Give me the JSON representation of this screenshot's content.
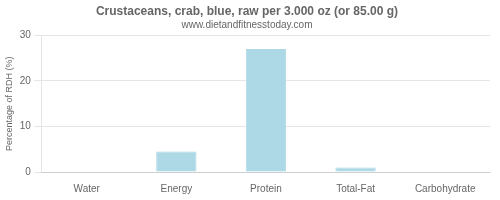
{
  "chart_data": {
    "type": "bar",
    "title": "Crustaceans, crab, blue, raw per 3.000 oz (or 85.00 g)",
    "subtitle": "www.dietandfitnesstoday.com",
    "categories": [
      "Water",
      "Energy",
      "Protein",
      "Total-Fat",
      "Carbohydrate"
    ],
    "values": [
      0,
      4.5,
      27,
      1.0,
      0
    ],
    "color": "#add8e6",
    "ylabel": "Percentage of RDH (%)",
    "ylim": [
      0,
      30
    ],
    "yticks": [
      0,
      10,
      20,
      30
    ],
    "grid": true
  }
}
